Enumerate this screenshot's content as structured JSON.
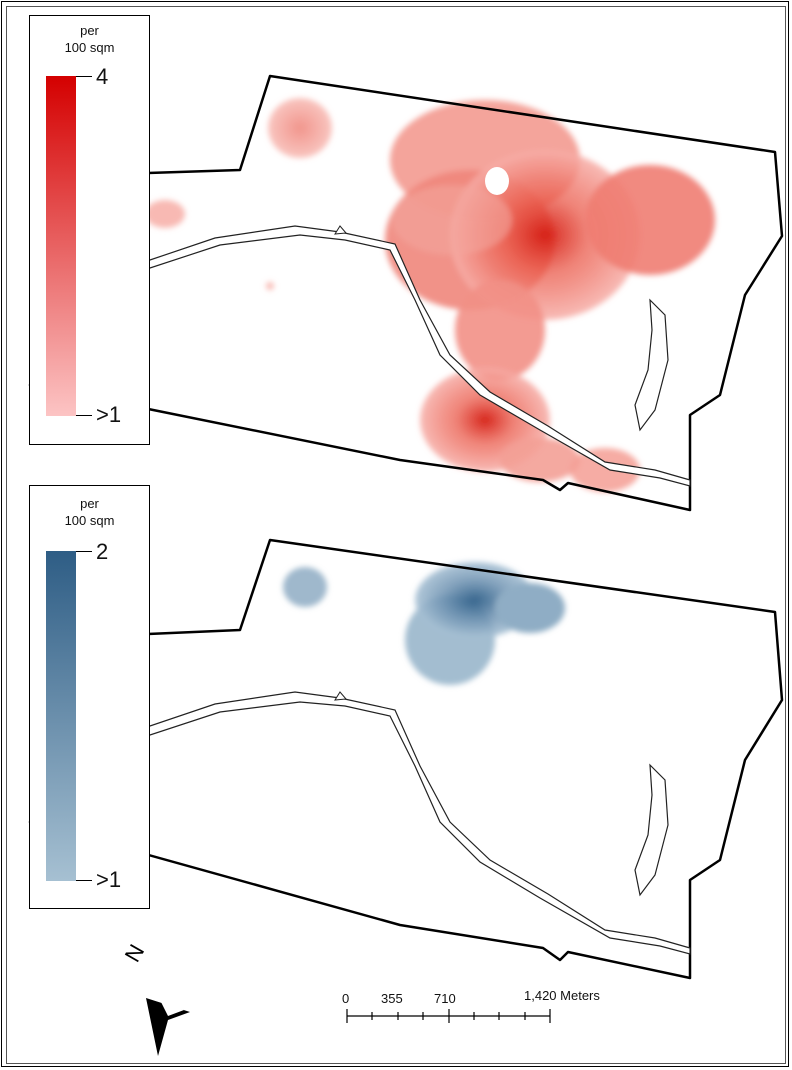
{
  "legends": [
    {
      "unit_line1": "per",
      "unit_line2": "100 sqm",
      "max_label": "4",
      "min_label": ">1",
      "color_high": "#d40000",
      "color_low": "#fcc4c4"
    },
    {
      "unit_line1": "per",
      "unit_line2": "100 sqm",
      "max_label": "2",
      "min_label": ">1",
      "color_high": "#2e5d85",
      "color_low": "#a6c0d2"
    }
  ],
  "scale_bar": {
    "labels": [
      "0",
      "355",
      "710",
      "1,420 Meters"
    ]
  },
  "north_arrow": {
    "label": "N",
    "icon": "north-arrow-icon"
  },
  "colors": {
    "boundary": "#000000",
    "river": "#333333",
    "heat_red": "#e8321e",
    "heat_blue": "#3a6c95"
  }
}
